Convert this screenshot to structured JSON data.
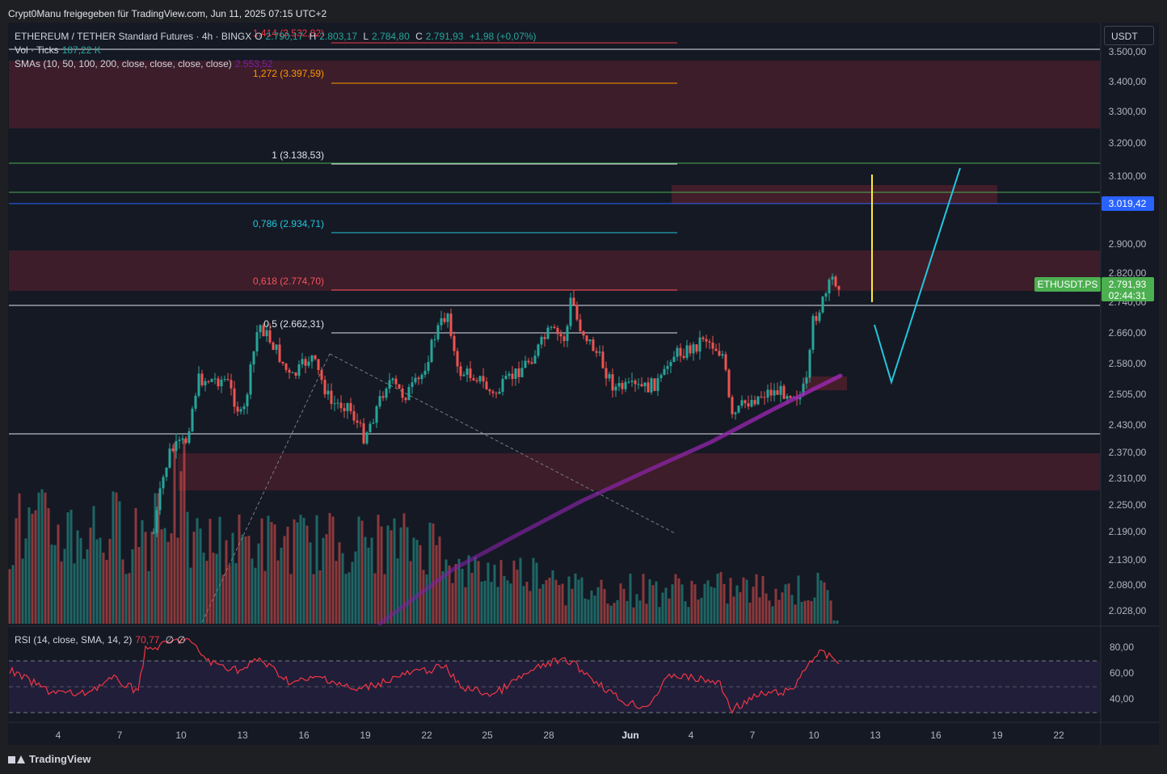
{
  "caption": "Crypt0Manu freigegeben für TradingView.com, Jun 11, 2025 07:15 UTC+2",
  "currency": "USDT",
  "legend": {
    "symbol": "ETHEREUM / TETHER Standard Futures · 4h · BINGX",
    "open_label": "O",
    "open": "2.790,17",
    "high_label": "H",
    "high": "2.803,17",
    "low_label": "L",
    "low": "2.784,80",
    "close_label": "C",
    "close": "2.791,93",
    "change": "+1,98 (+0,07%)",
    "vol_label": "Vol · Ticks",
    "vol_value": "187,22 K",
    "sma_label": "SMAs (10, 50, 100, 200, close, close, close, close)",
    "sma_value": "2.553,52",
    "rsi_label": "RSI (14, close, SMA, 14, 2)",
    "rsi_value": "70,77",
    "rsi_extra1": "∅",
    "rsi_extra2": "∅"
  },
  "fib_levels": [
    {
      "label": "1,414 (3.532,82)",
      "color": "#f23645"
    },
    {
      "label": "1,272 (3.397,59)",
      "color": "#ff9800"
    },
    {
      "label": "1 (3.138,53)",
      "color": "#e0e3eb"
    },
    {
      "label": "0,786 (2.934,71)",
      "color": "#22c7dd"
    },
    {
      "label": "0,618 (2.774,70)",
      "color": "#f7525f"
    },
    {
      "label": "0,5 (2.662,31)",
      "color": "#e0e3eb"
    }
  ],
  "price_axis": [
    "3.500,00",
    "3.400,00",
    "3.300,00",
    "3.200,00",
    "3.100,00",
    "2.900,00",
    "2.820,00",
    "2.740,00",
    "2.660,00",
    "2.580,00",
    "2.505,00",
    "2.430,00",
    "2.370,00",
    "2.310,00",
    "2.250,00",
    "2.190,00",
    "2.130,00",
    "2.080,00",
    "2.028,00"
  ],
  "rsi_axis": [
    "80,00",
    "60,00",
    "40,00"
  ],
  "time_axis": [
    "4",
    "7",
    "10",
    "13",
    "16",
    "19",
    "22",
    "25",
    "28",
    "Jun",
    "4",
    "7",
    "10",
    "13",
    "16",
    "19",
    "22"
  ],
  "price_tags": {
    "blue_line": "3.019,42",
    "symbol_tag": "ETHUSDT.PS",
    "last_price": "2.791,93",
    "countdown": "02:44:31"
  },
  "colors": {
    "up": "#26a69a",
    "down": "#ef5350",
    "zone": "#4a1f2b",
    "bg": "#151924"
  },
  "footer_brand": "TradingView"
}
